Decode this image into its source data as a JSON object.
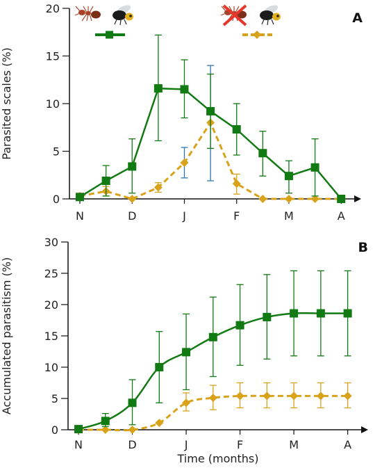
{
  "colors": {
    "green": "#127a12",
    "orange": "#d9a21b",
    "blue_error": "#2f74b5",
    "axis": "#111111"
  },
  "icons": {
    "series_a": [
      "ant-icon",
      "wasp-icon"
    ],
    "series_b": [
      "ant-crossed-out-icon",
      "wasp-icon"
    ]
  },
  "chart_data": [
    {
      "panel_label": "A",
      "type": "line",
      "ylabel": "Parasited scales (%)",
      "xlabel": "",
      "ylim": [
        0,
        20
      ],
      "yticks": [
        0,
        5,
        10,
        15,
        20
      ],
      "xlim": [
        0,
        10.5
      ],
      "x_ticks": [
        {
          "x": 0,
          "label": "N"
        },
        {
          "x": 2,
          "label": "D"
        },
        {
          "x": 4,
          "label": "J"
        },
        {
          "x": 6,
          "label": "F"
        },
        {
          "x": 8,
          "label": "M"
        },
        {
          "x": 10,
          "label": "A"
        }
      ],
      "series": [
        {
          "legend_icons": "series_a",
          "color": "green",
          "line_style": "solid",
          "marker": "square",
          "x": [
            0,
            1,
            2,
            3,
            4,
            5,
            6,
            7,
            8,
            9,
            10
          ],
          "y": [
            0.2,
            1.9,
            3.4,
            11.6,
            11.5,
            9.2,
            7.3,
            4.8,
            2.4,
            3.3,
            0
          ],
          "err_low": [
            0.2,
            0.3,
            0.6,
            6.1,
            8.5,
            5.3,
            4.6,
            2.4,
            0.6,
            0.3,
            0
          ],
          "err_high": [
            0.2,
            3.5,
            6.3,
            17.2,
            14.6,
            13.1,
            10.0,
            7.1,
            4.0,
            6.3,
            0
          ],
          "smooth": false
        },
        {
          "legend_icons": "series_b",
          "color": "orange",
          "line_style": "dashed",
          "marker": "diamond",
          "x": [
            0,
            1,
            2,
            3,
            4,
            5,
            6,
            7,
            8,
            9,
            10
          ],
          "y": [
            0.3,
            0.8,
            0.0,
            1.2,
            3.8,
            8.0,
            1.6,
            0.0,
            0.0,
            0.0,
            0.0
          ],
          "err_low": [
            0.3,
            0.3,
            0.0,
            0.7,
            2.2,
            1.9,
            0.5,
            0.0,
            0.0,
            0.0,
            0.0
          ],
          "err_high": [
            0.3,
            1.3,
            0.0,
            1.7,
            5.4,
            14.0,
            2.6,
            0.0,
            0.0,
            0.0,
            0.0
          ],
          "err_colors": {
            "5": "blue_error",
            "4": "blue_error"
          },
          "smooth": false
        }
      ]
    },
    {
      "panel_label": "B",
      "type": "line",
      "ylabel": "Accumulated parasitism (%)",
      "xlabel": "Time (months)",
      "ylim": [
        0,
        30
      ],
      "yticks": [
        0,
        5,
        10,
        15,
        20,
        25,
        30
      ],
      "xlim": [
        0,
        10.5
      ],
      "x_ticks": [
        {
          "x": 0,
          "label": "N"
        },
        {
          "x": 2,
          "label": "D"
        },
        {
          "x": 4,
          "label": "J"
        },
        {
          "x": 6,
          "label": "F"
        },
        {
          "x": 8,
          "label": "M"
        },
        {
          "x": 10,
          "label": "A"
        }
      ],
      "series": [
        {
          "color": "green",
          "line_style": "solid",
          "marker": "square",
          "x": [
            0,
            1,
            2,
            3,
            4,
            5,
            6,
            7,
            8,
            9,
            10
          ],
          "y": [
            0.1,
            1.4,
            4.3,
            10.0,
            12.4,
            14.8,
            16.7,
            18.0,
            18.6,
            18.6,
            18.6
          ],
          "err_low": [
            0.1,
            0.5,
            0.8,
            4.3,
            6.4,
            8.5,
            10.3,
            11.3,
            11.8,
            11.8,
            11.8
          ],
          "err_high": [
            0.1,
            2.6,
            8.0,
            15.7,
            18.5,
            21.2,
            23.2,
            24.8,
            25.4,
            25.4,
            25.4
          ],
          "smooth": true
        },
        {
          "color": "orange",
          "line_style": "dashed",
          "marker": "diamond",
          "x": [
            0,
            1,
            2,
            3,
            4,
            5,
            6,
            7,
            8,
            9,
            10
          ],
          "y": [
            0.0,
            0.0,
            0.0,
            1.1,
            4.3,
            5.1,
            5.4,
            5.4,
            5.4,
            5.4,
            5.4
          ],
          "err_low": [
            0.0,
            0.0,
            0.0,
            1.0,
            3.0,
            3.2,
            3.5,
            3.5,
            3.5,
            3.5,
            3.5
          ],
          "err_high": [
            0.0,
            0.0,
            0.0,
            1.2,
            5.9,
            7.1,
            7.5,
            7.5,
            7.5,
            7.5,
            7.5
          ],
          "smooth": true
        }
      ]
    }
  ]
}
